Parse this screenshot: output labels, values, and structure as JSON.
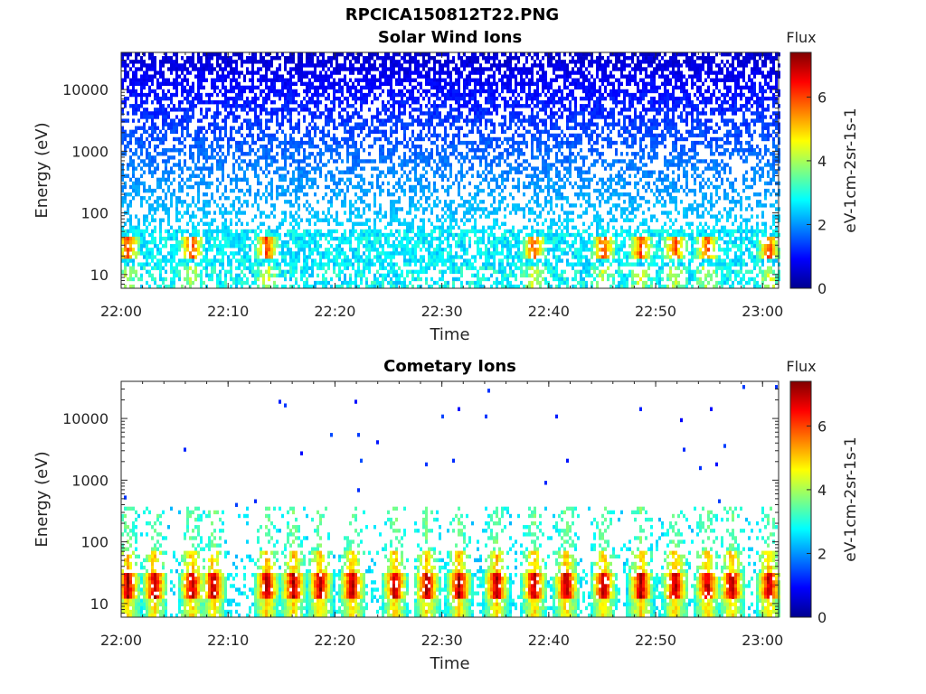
{
  "figure": {
    "title": "RPCICA150812T22.PNG"
  },
  "chart_data": [
    {
      "type": "heatmap",
      "title": "Solar Wind Ions",
      "xlabel": "Time",
      "ylabel": "Energy (eV)",
      "x_ticks": [
        "22:00",
        "22:10",
        "22:20",
        "22:30",
        "22:40",
        "22:50",
        "23:00"
      ],
      "y_ticks": [
        "10",
        "100",
        "1000",
        "10000"
      ],
      "x_range": [
        "22:00",
        "23:01:30"
      ],
      "y_range": [
        6,
        40000
      ],
      "y_scale": "log",
      "colorbar": {
        "label": "Flux",
        "unit": "eV-1cm-2sr-1s-1",
        "ticks": [
          "0",
          "2",
          "4",
          "6"
        ],
        "range": [
          0,
          7.4
        ],
        "colormap": "jet"
      },
      "hotspots_minutes": [
        0.5,
        6.5,
        13.5,
        38.5,
        45,
        48.5,
        51.7,
        54.7,
        60.5
      ]
    },
    {
      "type": "heatmap",
      "title": "Cometary Ions",
      "xlabel": "Time",
      "ylabel": "Energy (eV)",
      "x_ticks": [
        "22:00",
        "22:10",
        "22:20",
        "22:30",
        "22:40",
        "22:50",
        "23:00"
      ],
      "y_ticks": [
        "10",
        "100",
        "1000",
        "10000"
      ],
      "x_range": [
        "22:00",
        "23:01:30"
      ],
      "y_range": [
        6,
        40000
      ],
      "y_scale": "log",
      "colorbar": {
        "label": "Flux",
        "unit": "eV-1cm-2sr-1s-1",
        "ticks": [
          "0",
          "2",
          "4",
          "6"
        ],
        "range": [
          0,
          7.4
        ],
        "colormap": "jet"
      },
      "hotspots_minutes": [
        0.5,
        3,
        6.5,
        8.5,
        13.5,
        16,
        18.5,
        21.5,
        25.5,
        28.5,
        31.5,
        35,
        38.5,
        41.5,
        45,
        48.5,
        51.7,
        54.7,
        57,
        60.5
      ]
    }
  ]
}
